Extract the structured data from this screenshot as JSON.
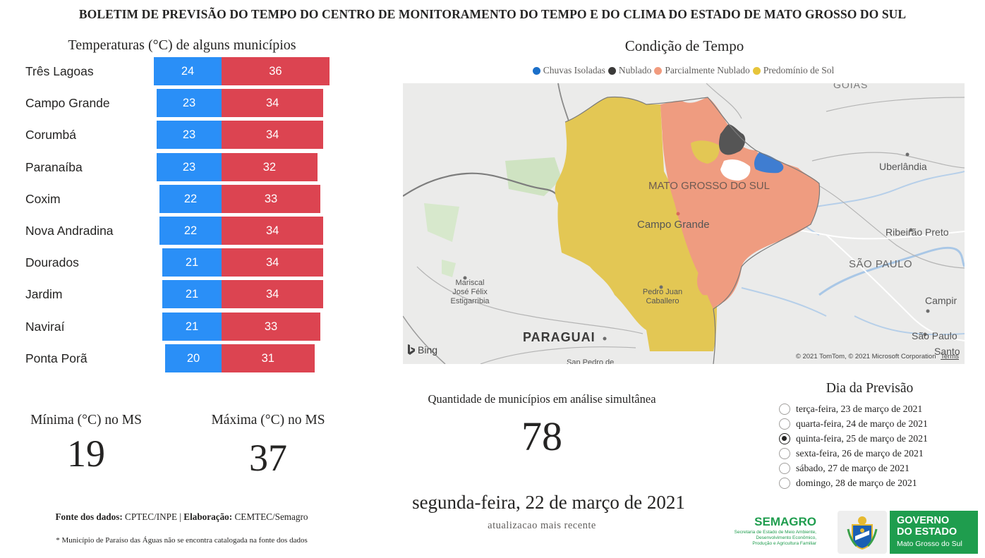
{
  "header": {
    "title": "BOLETIM DE PREVISÃO DO TEMPO DO CENTRO DE MONITORAMENTO DO TEMPO E DO CLIMA DO ESTADO DE MATO GROSSO DO SUL"
  },
  "temperatures": {
    "title": "Temperaturas (°C) de alguns municípios",
    "cities": [
      {
        "name": "Três Lagoas",
        "min": "24",
        "max": "36"
      },
      {
        "name": "Campo Grande",
        "min": "23",
        "max": "34"
      },
      {
        "name": "Corumbá",
        "min": "23",
        "max": "34"
      },
      {
        "name": "Paranaíba",
        "min": "23",
        "max": "32"
      },
      {
        "name": "Coxim",
        "min": "22",
        "max": "33"
      },
      {
        "name": "Nova Andradina",
        "min": "22",
        "max": "34"
      },
      {
        "name": "Dourados",
        "min": "21",
        "max": "34"
      },
      {
        "name": "Jardim",
        "min": "21",
        "max": "34"
      },
      {
        "name": "Naviraí",
        "min": "21",
        "max": "33"
      },
      {
        "name": "Ponta Porã",
        "min": "20",
        "max": "31"
      }
    ],
    "colors": {
      "min": "#2a8ff7",
      "max": "#dc4451"
    }
  },
  "stats": {
    "min_label": "Mínima (°C) no MS",
    "min_value": "19",
    "max_label": "Máxima (°C) no MS",
    "max_value": "37"
  },
  "condition": {
    "title": "Condição de Tempo",
    "legend": [
      {
        "label": "Chuvas Isoladas",
        "color": "#1b6fc9"
      },
      {
        "label": "Nublado",
        "color": "#3b3a39"
      },
      {
        "label": "Parcialmente Nublado",
        "color": "#f19b7e"
      },
      {
        "label": "Predomínio de Sol",
        "color": "#e7c53a"
      }
    ],
    "map": {
      "labels": {
        "goias": "GOIÁS",
        "uberlandia": "Uberlândia",
        "ms": "MATO GROSSO DO SUL",
        "campo_grande": "Campo Grande",
        "ribeirao": "Ribeirão Preto",
        "sao_paulo_state": "SÃO PAULO",
        "campinas": "Campir",
        "mariscal": "Mariscal",
        "jose_felix": "José Félix",
        "estigarribia": "Estigarribia",
        "pedro_juan": "Pedro Juan",
        "caballero": "Caballero",
        "paraguai": "PARAGUAI",
        "sao_paulo_city": "São Paulo",
        "santos": "Santo",
        "san_pedro": "San Pedro de"
      },
      "bing": "Bing",
      "copyright": "© 2021 TomTom, © 2021 Microsoft Corporation",
      "terms": "Terms"
    }
  },
  "quantity": {
    "label": "Quantidade de municípios em análise simultânea",
    "value": "78"
  },
  "date": {
    "main": "segunda-feira, 22 de março de 2021",
    "sub": "atualizacao mais recente"
  },
  "forecast_day": {
    "title": "Dia da Previsão",
    "options": [
      {
        "label": "terça-feira, 23 de março de 2021",
        "selected": false
      },
      {
        "label": "quarta-feira, 24 de março de 2021",
        "selected": false
      },
      {
        "label": "quinta-feira, 25 de março de 2021",
        "selected": true
      },
      {
        "label": "sexta-feira, 26 de março de 2021",
        "selected": false
      },
      {
        "label": "sábado, 27 de março de 2021",
        "selected": false
      },
      {
        "label": "domingo, 28 de março de 2021",
        "selected": false
      }
    ]
  },
  "source": {
    "data_label": "Fonte dos dados:",
    "data_value": "CPTEC/INPE",
    "separator": "|",
    "elab_label": "Elaboração:",
    "elab_value": "CEMTEC/Semagro",
    "footnote": "* Município de Paraíso das Águas não se encontra catalogada na fonte dos dados"
  },
  "logos": {
    "semagro_name": "SEMAGRO",
    "semagro_line1": "Secretaria de Estado de Meio Ambiente,",
    "semagro_line2": "Desenvolvimento Econômico,",
    "semagro_line3": "Produção e Agricultura Familiar",
    "gov_line1": "GOVERNO",
    "gov_line2": "DO ESTADO",
    "gov_line3": "Mato Grosso do Sul"
  }
}
